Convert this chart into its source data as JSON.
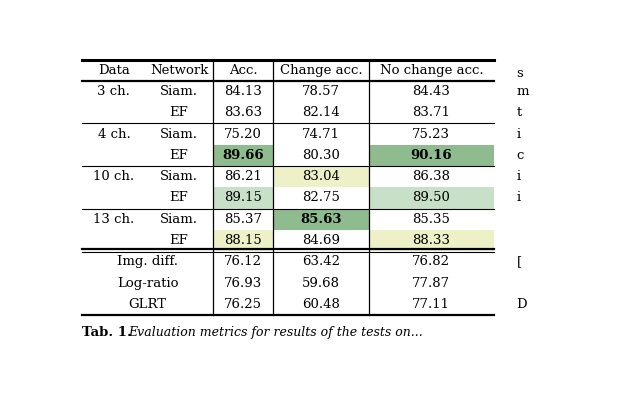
{
  "col_headers": [
    "Data",
    "Network",
    "Acc.",
    "Change acc.",
    "No change acc."
  ],
  "rows": [
    {
      "data": "3 ch.",
      "network": "Siam.",
      "acc": "84.13",
      "change_acc": "78.57",
      "no_change_acc": "84.43",
      "bold": [],
      "bg": [
        "white",
        "white",
        "white",
        "white",
        "white"
      ]
    },
    {
      "data": "",
      "network": "EF",
      "acc": "83.63",
      "change_acc": "82.14",
      "no_change_acc": "83.71",
      "bold": [],
      "bg": [
        "white",
        "white",
        "white",
        "white",
        "white"
      ]
    },
    {
      "data": "4 ch.",
      "network": "Siam.",
      "acc": "75.20",
      "change_acc": "74.71",
      "no_change_acc": "75.23",
      "bold": [],
      "bg": [
        "white",
        "white",
        "white",
        "white",
        "white"
      ]
    },
    {
      "data": "",
      "network": "EF",
      "acc": "89.66",
      "change_acc": "80.30",
      "no_change_acc": "90.16",
      "bold": [
        "acc",
        "no_change_acc"
      ],
      "bg": [
        "white",
        "white",
        "#8fbc8f",
        "white",
        "#8fbc8f"
      ]
    },
    {
      "data": "10 ch.",
      "network": "Siam.",
      "acc": "86.21",
      "change_acc": "83.04",
      "no_change_acc": "86.38",
      "bold": [],
      "bg": [
        "white",
        "white",
        "white",
        "#eef0c8",
        "white"
      ]
    },
    {
      "data": "",
      "network": "EF",
      "acc": "89.15",
      "change_acc": "82.75",
      "no_change_acc": "89.50",
      "bold": [],
      "bg": [
        "white",
        "white",
        "#c8dfc8",
        "white",
        "#c8dfc8"
      ]
    },
    {
      "data": "13 ch.",
      "network": "Siam.",
      "acc": "85.37",
      "change_acc": "85.63",
      "no_change_acc": "85.35",
      "bold": [
        "change_acc"
      ],
      "bg": [
        "white",
        "white",
        "white",
        "#8fbc8f",
        "white"
      ]
    },
    {
      "data": "",
      "network": "EF",
      "acc": "88.15",
      "change_acc": "84.69",
      "no_change_acc": "88.33",
      "bold": [],
      "bg": [
        "white",
        "white",
        "#eef0c8",
        "white",
        "#eef0c8"
      ]
    }
  ],
  "baseline_rows": [
    {
      "data": "Img. diff.",
      "acc": "76.12",
      "change_acc": "63.42",
      "no_change_acc": "76.82"
    },
    {
      "data": "Log-ratio",
      "acc": "76.93",
      "change_acc": "59.68",
      "no_change_acc": "77.87"
    },
    {
      "data": "GLRT",
      "acc": "76.25",
      "change_acc": "60.48",
      "no_change_acc": "77.11"
    }
  ],
  "right_text": [
    "s",
    "m",
    "t",
    "i",
    "c",
    "i",
    "i"
  ],
  "right_text2": [
    "[",
    "D"
  ],
  "caption_bold": "Tab. 1.",
  "caption_italic": "Evaluation metrics for results of the tests on...",
  "bg_color": "#ffffff"
}
